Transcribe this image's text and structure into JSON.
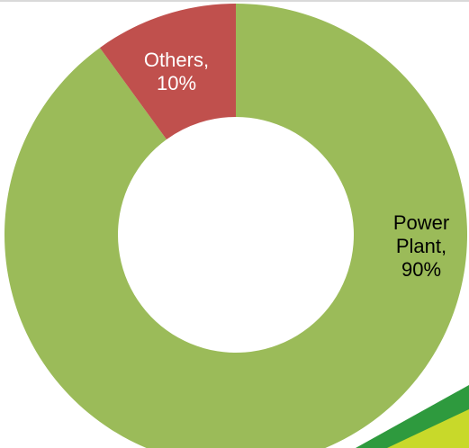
{
  "chart_data": {
    "type": "donut",
    "data_labels": [
      "Power Plant, 90%",
      "Others, 10%"
    ],
    "values": [
      90,
      10
    ],
    "colors": [
      "#9bbb59",
      "#c0504d"
    ],
    "label_colors": [
      "#000000",
      "#ffffff"
    ]
  }
}
